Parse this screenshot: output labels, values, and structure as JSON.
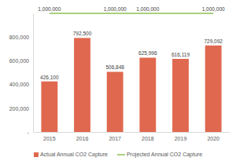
{
  "chart_data": {
    "type": "bar",
    "categories": [
      "2015",
      "2016",
      "2017",
      "2018",
      "2019",
      "2020"
    ],
    "series": [
      {
        "name": "Actual Annual CO2 Capture",
        "type": "bar",
        "color": "#e0684f",
        "values": [
          426100,
          792500,
          506848,
          625996,
          616119,
          729092
        ],
        "value_labels": [
          "426,100",
          "792,500",
          "506,848",
          "625,996",
          "616,119",
          "729,092"
        ]
      },
      {
        "name": "Projected Annual CO2 Capture",
        "type": "line",
        "color": "#8cc152",
        "values": [
          1000000,
          1000000,
          1000000,
          1000000,
          1000000,
          1000000
        ],
        "value_labels": [
          "1,000,000",
          null,
          "1,000,000",
          "1,000,000",
          null,
          "1,000,000"
        ]
      }
    ],
    "ylim": [
      0,
      1000000
    ],
    "yticks": [
      {
        "value": 0,
        "label": "-"
      },
      {
        "value": 200000,
        "label": "200,000"
      },
      {
        "value": 400000,
        "label": "400,000"
      },
      {
        "value": 600000,
        "label": "600,000"
      },
      {
        "value": 800000,
        "label": "800,000"
      }
    ],
    "grid": false,
    "data_labels": true,
    "legend": "bottom"
  }
}
